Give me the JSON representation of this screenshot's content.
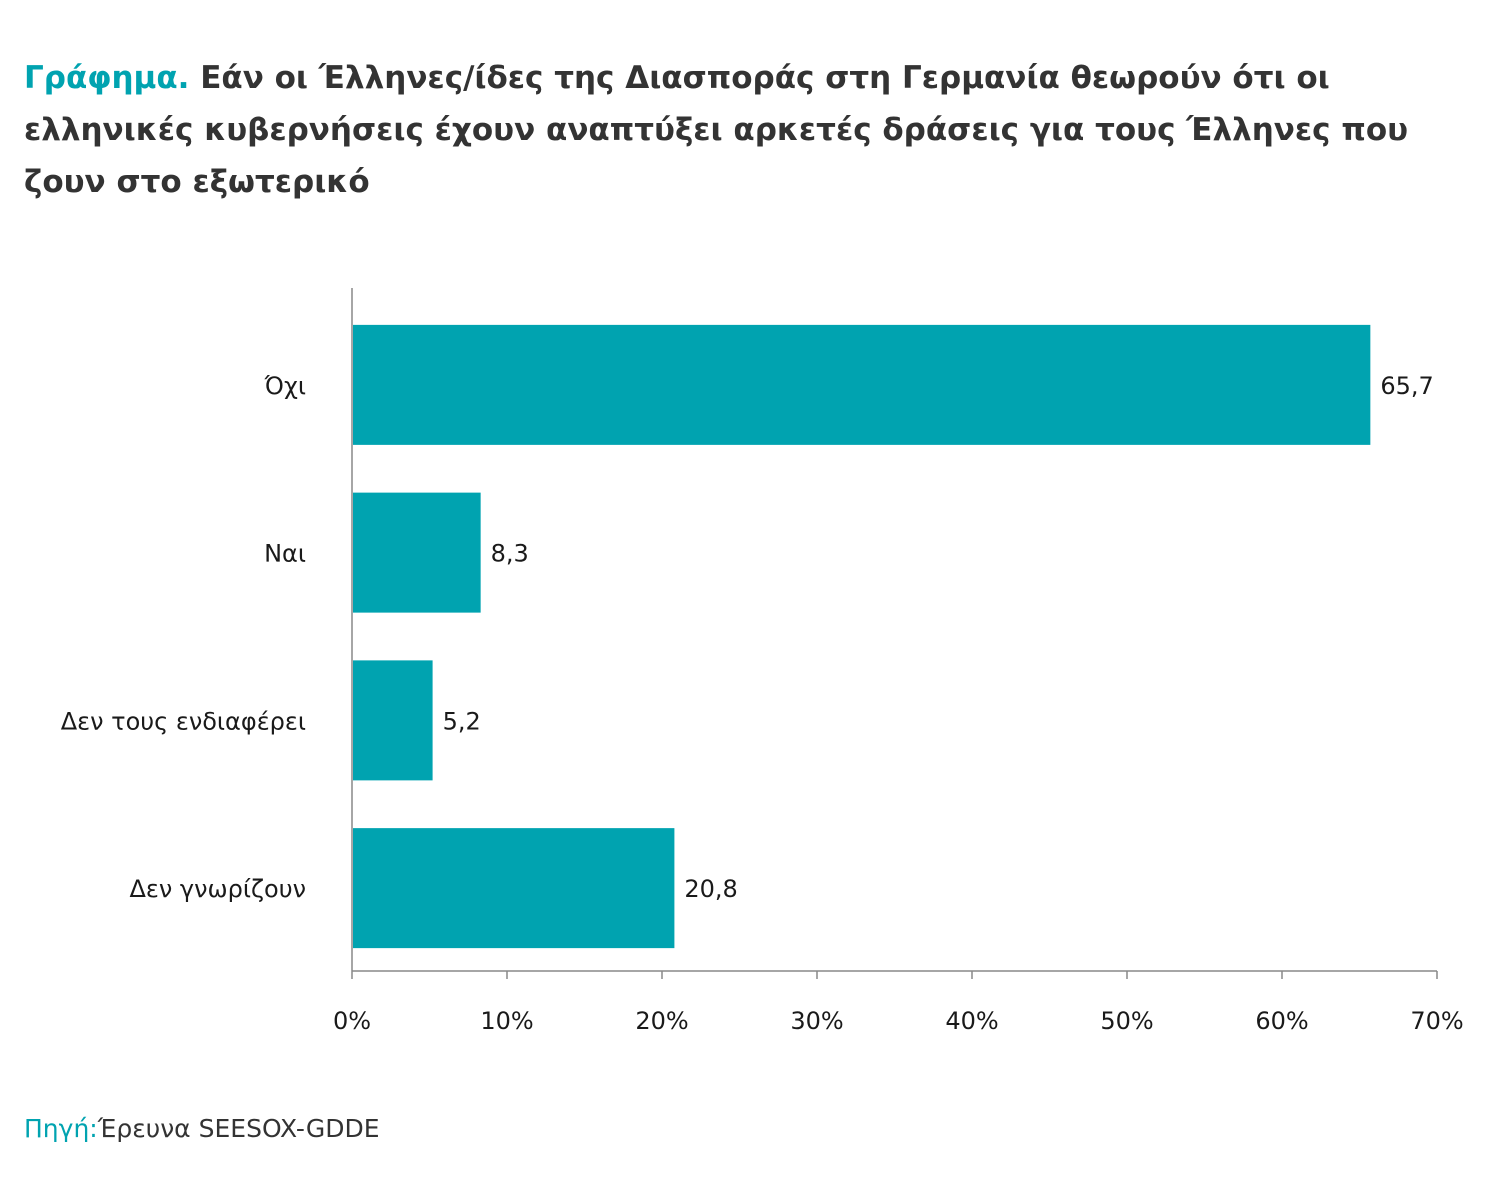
{
  "title": {
    "lead": "Γράφημα.",
    "text": "Εάν οι Έλληνες/ίδες της Διασποράς στη Γερμανία θεωρούν ότι οι ελληνικές κυβερνήσεις έχουν αναπτύξει αρκετές δράσεις για τους Έλληνες που ζουν στο εξωτερικό"
  },
  "source": {
    "label": "Πηγή:",
    "text": "Έρευνα SEESOX-GDDE"
  },
  "colors": {
    "bar": "#00a3b0",
    "accent": "#00a3b0",
    "axis": "#888888"
  },
  "chart_data": {
    "type": "bar",
    "orientation": "horizontal",
    "categories": [
      "Όχι",
      "Ναι",
      "Δεν τους ενδιαφέρει",
      "Δεν γνωρίζουν"
    ],
    "values": [
      65.7,
      8.3,
      5.2,
      20.8
    ],
    "data_labels": [
      "65,7",
      "8,3",
      "5,2",
      "20,8"
    ],
    "xlim": [
      0,
      70
    ],
    "xticks": [
      0,
      10,
      20,
      30,
      40,
      50,
      60,
      70
    ],
    "xtick_labels": [
      "0%",
      "10%",
      "20%",
      "30%",
      "40%",
      "50%",
      "60%",
      "70%"
    ],
    "grid": false,
    "legend": "none"
  }
}
